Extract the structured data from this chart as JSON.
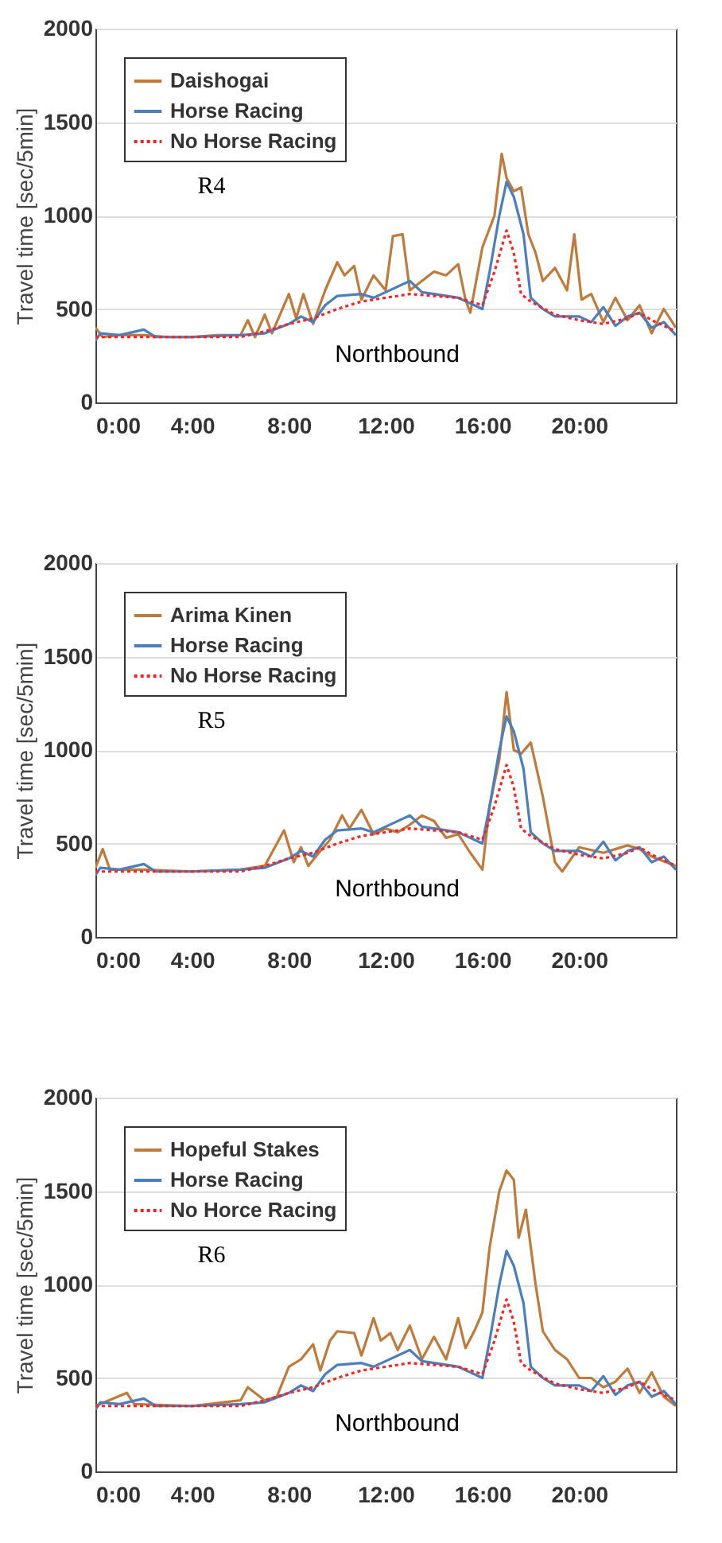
{
  "chart_data": [
    {
      "type": "line",
      "ylabel": "Travel time [sec/5min]",
      "xlim": [
        0,
        24
      ],
      "xticks": [
        {
          "value": 0,
          "label": "0:00"
        },
        {
          "value": 4,
          "label": "4:00"
        },
        {
          "value": 8,
          "label": "8:00"
        },
        {
          "value": 12,
          "label": "12:00"
        },
        {
          "value": 16,
          "label": "16:00"
        },
        {
          "value": 20,
          "label": "20:00"
        }
      ],
      "ylim": [
        0,
        2000
      ],
      "yticks": [
        0,
        500,
        1000,
        1500,
        2000
      ],
      "grid": "y",
      "legend": "top left",
      "annotations": [
        "R4",
        "Northbound"
      ],
      "series": [
        {
          "name": "Daishogai",
          "color": "#c07a3a",
          "line_style": "solid",
          "x": [
            0,
            0.3,
            1,
            2,
            3,
            4,
            5,
            6,
            6.3,
            6.6,
            7,
            7.3,
            8,
            8.3,
            8.6,
            9,
            9.5,
            10,
            10.3,
            10.7,
            11,
            11.5,
            12,
            12.3,
            12.7,
            13,
            13.5,
            14,
            14.5,
            15,
            15.3,
            15.5,
            16,
            16.5,
            16.8,
            17,
            17.3,
            17.6,
            17.9,
            18.2,
            18.5,
            19,
            19.5,
            19.8,
            20.1,
            20.5,
            21,
            21.5,
            22,
            22.5,
            23,
            23.5,
            24
          ],
          "values": [
            400,
            350,
            360,
            360,
            350,
            350,
            360,
            360,
            440,
            350,
            470,
            370,
            580,
            450,
            580,
            420,
            600,
            750,
            680,
            730,
            550,
            680,
            600,
            890,
            900,
            600,
            650,
            700,
            680,
            740,
            550,
            480,
            830,
            1000,
            1330,
            1200,
            1130,
            1150,
            900,
            800,
            650,
            720,
            600,
            900,
            550,
            580,
            430,
            560,
            440,
            520,
            370,
            500,
            400
          ]
        },
        {
          "name": "Horse Racing",
          "color": "#4a7ebf",
          "line_style": "solid",
          "x": [
            0,
            0.2,
            1,
            2,
            2.5,
            4,
            6,
            7,
            8,
            8.5,
            9,
            9.5,
            10,
            11,
            11.5,
            12,
            13,
            13.5,
            14,
            15,
            16,
            16.3,
            16.7,
            17,
            17.3,
            17.7,
            18,
            18.5,
            19,
            20,
            20.5,
            21,
            21.5,
            22,
            22.5,
            23,
            23.5,
            24
          ],
          "values": [
            330,
            370,
            360,
            390,
            350,
            350,
            360,
            370,
            420,
            460,
            430,
            520,
            570,
            580,
            560,
            590,
            650,
            590,
            580,
            560,
            500,
            700,
            1000,
            1180,
            1100,
            900,
            560,
            500,
            460,
            460,
            430,
            510,
            410,
            460,
            480,
            400,
            430,
            360
          ]
        },
        {
          "name": "No Horse Racing",
          "color": "#ff2020",
          "line_style": "dotted",
          "x": [
            0,
            2,
            4,
            6,
            7,
            8,
            9,
            10,
            11,
            12,
            13,
            14,
            15,
            15.5,
            16,
            16.5,
            17,
            17.3,
            17.6,
            18,
            19,
            20,
            21,
            22,
            22.5,
            23,
            24
          ],
          "values": [
            350,
            350,
            350,
            350,
            380,
            420,
            450,
            500,
            540,
            560,
            580,
            570,
            560,
            540,
            520,
            700,
            920,
            800,
            580,
            540,
            470,
            440,
            420,
            450,
            480,
            440,
            380
          ]
        }
      ]
    },
    {
      "type": "line",
      "ylabel": "Travel time [sec/5min]",
      "xlim": [
        0,
        24
      ],
      "xticks": [
        {
          "value": 0,
          "label": "0:00"
        },
        {
          "value": 4,
          "label": "4:00"
        },
        {
          "value": 8,
          "label": "8:00"
        },
        {
          "value": 12,
          "label": "12:00"
        },
        {
          "value": 16,
          "label": "16:00"
        },
        {
          "value": 20,
          "label": "20:00"
        }
      ],
      "ylim": [
        0,
        2000
      ],
      "yticks": [
        0,
        500,
        1000,
        1500,
        2000
      ],
      "grid": "y",
      "legend": "top left",
      "annotations": [
        "R5",
        "Northbound"
      ],
      "series": [
        {
          "name": "Arima Kinen",
          "color": "#c07a3a",
          "line_style": "solid",
          "x": [
            0,
            0.3,
            0.6,
            2,
            4,
            6,
            7,
            7.8,
            8.2,
            8.5,
            8.8,
            9.3,
            9.7,
            10.2,
            10.5,
            11,
            11.5,
            12,
            12.5,
            13,
            13.5,
            14,
            14.5,
            15,
            15.5,
            16,
            16.3,
            16.7,
            17,
            17.3,
            17.6,
            18,
            18.5,
            19,
            19.3,
            20,
            21,
            22,
            22.5,
            23,
            24
          ],
          "values": [
            370,
            470,
            360,
            360,
            350,
            360,
            380,
            570,
            400,
            480,
            380,
            460,
            520,
            650,
            580,
            680,
            550,
            580,
            560,
            600,
            650,
            620,
            530,
            550,
            450,
            360,
            700,
            950,
            1310,
            1000,
            980,
            1040,
            750,
            400,
            350,
            480,
            450,
            490,
            470,
            430,
            380
          ]
        },
        {
          "name": "Horse Racing",
          "color": "#4a7ebf",
          "line_style": "solid",
          "x": [
            0,
            0.2,
            1,
            2,
            2.5,
            4,
            6,
            7,
            8,
            8.5,
            9,
            9.5,
            10,
            11,
            11.5,
            12,
            13,
            13.5,
            14,
            15,
            16,
            16.3,
            16.7,
            17,
            17.3,
            17.7,
            18,
            18.5,
            19,
            20,
            20.5,
            21,
            21.5,
            22,
            22.5,
            23,
            23.5,
            24
          ],
          "values": [
            330,
            370,
            360,
            390,
            350,
            350,
            360,
            370,
            420,
            460,
            430,
            520,
            570,
            580,
            560,
            590,
            650,
            590,
            580,
            560,
            500,
            700,
            1000,
            1180,
            1100,
            900,
            560,
            500,
            460,
            460,
            430,
            510,
            410,
            460,
            480,
            400,
            430,
            360
          ]
        },
        {
          "name": "No Horse Racing",
          "color": "#ff2020",
          "line_style": "dotted",
          "x": [
            0,
            2,
            4,
            6,
            7,
            8,
            9,
            10,
            11,
            12,
            13,
            14,
            15,
            15.5,
            16,
            16.5,
            17,
            17.3,
            17.6,
            18,
            19,
            20,
            21,
            22,
            22.5,
            23,
            24
          ],
          "values": [
            350,
            350,
            350,
            350,
            380,
            420,
            450,
            500,
            540,
            560,
            580,
            570,
            560,
            540,
            520,
            700,
            920,
            800,
            580,
            540,
            470,
            440,
            420,
            450,
            480,
            440,
            380
          ]
        }
      ]
    },
    {
      "type": "line",
      "ylabel": "Travel time [sec/5min]",
      "xlim": [
        0,
        24
      ],
      "xticks": [
        {
          "value": 0,
          "label": "0:00"
        },
        {
          "value": 4,
          "label": "4:00"
        },
        {
          "value": 8,
          "label": "8:00"
        },
        {
          "value": 12,
          "label": "12:00"
        },
        {
          "value": 16,
          "label": "16:00"
        },
        {
          "value": 20,
          "label": "20:00"
        }
      ],
      "ylim": [
        0,
        2000
      ],
      "yticks": [
        0,
        500,
        1000,
        1500,
        2000
      ],
      "grid": "y",
      "legend": "top left",
      "annotations": [
        "R6",
        "Northbound"
      ],
      "series": [
        {
          "name": "Hopeful Stakes",
          "color": "#c07a3a",
          "line_style": "solid",
          "x": [
            0,
            1.3,
            1.6,
            4,
            6,
            6.3,
            7,
            7.5,
            8,
            8.5,
            9,
            9.3,
            9.7,
            10,
            10.7,
            11,
            11.5,
            11.8,
            12.2,
            12.5,
            13,
            13.5,
            14,
            14.5,
            15,
            15.3,
            15.7,
            16,
            16.3,
            16.7,
            17,
            17.3,
            17.5,
            17.8,
            18.2,
            18.5,
            19,
            19.5,
            20,
            20.5,
            21,
            21.5,
            22,
            22.5,
            23,
            23.5,
            24
          ],
          "values": [
            350,
            420,
            360,
            350,
            380,
            450,
            380,
            400,
            560,
            600,
            680,
            540,
            700,
            750,
            740,
            620,
            820,
            700,
            740,
            650,
            780,
            600,
            720,
            600,
            820,
            660,
            760,
            850,
            1200,
            1500,
            1610,
            1560,
            1250,
            1400,
            1000,
            750,
            650,
            600,
            500,
            500,
            450,
            480,
            550,
            420,
            530,
            400,
            350
          ]
        },
        {
          "name": "Horse Racing",
          "color": "#4a7ebf",
          "line_style": "solid",
          "x": [
            0,
            0.2,
            1,
            2,
            2.5,
            4,
            6,
            7,
            8,
            8.5,
            9,
            9.5,
            10,
            11,
            11.5,
            12,
            13,
            13.5,
            14,
            15,
            16,
            16.3,
            16.7,
            17,
            17.3,
            17.7,
            18,
            18.5,
            19,
            20,
            20.5,
            21,
            21.5,
            22,
            22.5,
            23,
            23.5,
            24
          ],
          "values": [
            330,
            370,
            360,
            390,
            350,
            350,
            360,
            370,
            420,
            460,
            430,
            520,
            570,
            580,
            560,
            590,
            650,
            590,
            580,
            560,
            500,
            700,
            1000,
            1180,
            1100,
            900,
            560,
            500,
            460,
            460,
            430,
            510,
            410,
            460,
            480,
            400,
            430,
            360
          ]
        },
        {
          "name": "No Horce Racing",
          "color": "#ff2020",
          "line_style": "dotted",
          "x": [
            0,
            2,
            4,
            6,
            7,
            8,
            9,
            10,
            11,
            12,
            13,
            14,
            15,
            15.5,
            16,
            16.5,
            17,
            17.3,
            17.6,
            18,
            19,
            20,
            21,
            22,
            22.5,
            23,
            24
          ],
          "values": [
            350,
            350,
            350,
            350,
            380,
            420,
            450,
            500,
            540,
            560,
            580,
            570,
            560,
            540,
            520,
            700,
            920,
            800,
            580,
            540,
            470,
            440,
            420,
            450,
            480,
            440,
            380
          ]
        }
      ]
    }
  ]
}
